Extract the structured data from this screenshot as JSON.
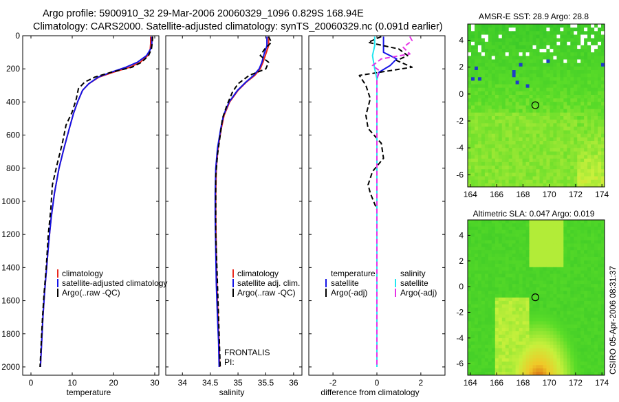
{
  "header": {
    "line1": "Argo profile:  5900910_32 29-Mar-2006 20060329_1096 0.829S 168.94E",
    "line2": "Climatology: CARS2000. Satellite-adjusted climatology: synTS_20060329.nc (0.091d earlier)"
  },
  "stamp": "CSIRO 05-Apr-2006 08:31:37",
  "colors": {
    "climatology": "#e8281e",
    "satellite": "#1414e6",
    "argo": "#000000",
    "sal_satellite": "#22e6f0",
    "sal_argo": "#e632e6"
  },
  "chart_data": [
    {
      "type": "line",
      "id": "temperature",
      "xlabel": "temperature",
      "xlim": [
        -2,
        31
      ],
      "ylim": [
        2050,
        0
      ],
      "xticks": [
        0,
        10,
        20,
        30
      ],
      "yticks": [
        0,
        200,
        400,
        600,
        800,
        1000,
        1200,
        1400,
        1600,
        1800,
        2000
      ],
      "legend": [
        "climatology",
        "satellite-adjusted climatology",
        "Argo(..raw -QC)"
      ],
      "series": [
        {
          "name": "climatology",
          "color": "#e8281e",
          "dash": false,
          "points": [
            [
              29.0,
              5
            ],
            [
              29.0,
              50
            ],
            [
              28.9,
              80
            ],
            [
              28.3,
              120
            ],
            [
              26.5,
              160
            ],
            [
              24.0,
              190
            ],
            [
              20.0,
              220
            ],
            [
              16.5,
              250
            ],
            [
              14.0,
              290
            ],
            [
              12.5,
              330
            ],
            [
              11.3,
              400
            ],
            [
              10.3,
              470
            ],
            [
              9.3,
              560
            ],
            [
              8.0,
              680
            ],
            [
              6.8,
              800
            ],
            [
              5.7,
              950
            ],
            [
              4.9,
              1100
            ],
            [
              4.3,
              1250
            ],
            [
              3.8,
              1400
            ],
            [
              3.3,
              1550
            ],
            [
              2.9,
              1700
            ],
            [
              2.6,
              1850
            ],
            [
              2.3,
              2000
            ]
          ]
        },
        {
          "name": "satellite-adjusted climatology",
          "color": "#1414e6",
          "dash": false,
          "points": [
            [
              29.3,
              5
            ],
            [
              29.3,
              50
            ],
            [
              29.0,
              80
            ],
            [
              28.0,
              120
            ],
            [
              25.8,
              160
            ],
            [
              23.0,
              190
            ],
            [
              19.5,
              220
            ],
            [
              16.3,
              250
            ],
            [
              14.0,
              290
            ],
            [
              12.5,
              330
            ],
            [
              11.3,
              400
            ],
            [
              10.3,
              470
            ],
            [
              9.3,
              560
            ],
            [
              8.0,
              680
            ],
            [
              6.8,
              800
            ],
            [
              5.7,
              950
            ],
            [
              4.9,
              1100
            ],
            [
              4.3,
              1250
            ],
            [
              3.8,
              1400
            ],
            [
              3.3,
              1550
            ],
            [
              2.9,
              1700
            ],
            [
              2.6,
              1850
            ],
            [
              2.3,
              2000
            ]
          ]
        },
        {
          "name": "Argo(..raw -QC)",
          "color": "#000000",
          "dash": true,
          "points": [
            [
              29.5,
              5
            ],
            [
              29.4,
              40
            ],
            [
              29.2,
              80
            ],
            [
              28.5,
              120
            ],
            [
              26.8,
              160
            ],
            [
              24.5,
              190
            ],
            [
              19.5,
              220
            ],
            [
              15.5,
              250
            ],
            [
              13.0,
              280
            ],
            [
              11.5,
              320
            ],
            [
              11.0,
              380
            ],
            [
              10.0,
              460
            ],
            [
              8.5,
              540
            ],
            [
              7.6,
              650
            ],
            [
              6.3,
              780
            ],
            [
              5.2,
              900
            ],
            [
              4.8,
              1050
            ],
            [
              4.2,
              1200
            ],
            [
              3.7,
              1400
            ],
            [
              3.2,
              1550
            ],
            [
              2.8,
              1700
            ],
            [
              2.5,
              1850
            ],
            [
              2.2,
              2000
            ]
          ]
        }
      ]
    },
    {
      "type": "line",
      "id": "salinity",
      "xlabel": "salinity",
      "xlim": [
        33.7,
        36.15
      ],
      "ylim": [
        2050,
        0
      ],
      "xticks": [
        34,
        34.5,
        35,
        35.5,
        36
      ],
      "legend": [
        "climatology",
        "satellite adj. clim.",
        "Argo(..raw -QC)"
      ],
      "annotation": [
        "FRONTALIS",
        "PI:"
      ],
      "series": [
        {
          "name": "climatology",
          "color": "#e8281e",
          "dash": false,
          "points": [
            [
              35.55,
              5
            ],
            [
              35.55,
              60
            ],
            [
              35.5,
              110
            ],
            [
              35.45,
              160
            ],
            [
              35.4,
              200
            ],
            [
              35.3,
              240
            ],
            [
              35.15,
              280
            ],
            [
              35.0,
              330
            ],
            [
              34.85,
              400
            ],
            [
              34.75,
              480
            ],
            [
              34.7,
              560
            ],
            [
              34.64,
              680
            ],
            [
              34.61,
              800
            ],
            [
              34.6,
              950
            ],
            [
              34.6,
              1100
            ],
            [
              34.61,
              1300
            ],
            [
              34.62,
              1500
            ],
            [
              34.64,
              1700
            ],
            [
              34.66,
              1850
            ],
            [
              34.67,
              2000
            ]
          ]
        },
        {
          "name": "satellite adj. clim.",
          "color": "#1414e6",
          "dash": false,
          "points": [
            [
              35.52,
              5
            ],
            [
              35.52,
              60
            ],
            [
              35.47,
              110
            ],
            [
              35.43,
              160
            ],
            [
              35.38,
              200
            ],
            [
              35.28,
              240
            ],
            [
              35.14,
              280
            ],
            [
              34.99,
              330
            ],
            [
              34.84,
              400
            ],
            [
              34.74,
              480
            ],
            [
              34.69,
              560
            ],
            [
              34.63,
              680
            ],
            [
              34.6,
              800
            ],
            [
              34.59,
              950
            ],
            [
              34.59,
              1100
            ],
            [
              34.6,
              1300
            ],
            [
              34.61,
              1500
            ],
            [
              34.63,
              1700
            ],
            [
              34.65,
              1850
            ],
            [
              34.66,
              2000
            ]
          ]
        },
        {
          "name": "Argo(..raw -QC)",
          "color": "#000000",
          "dash": true,
          "points": [
            [
              35.55,
              5
            ],
            [
              35.6,
              40
            ],
            [
              35.48,
              80
            ],
            [
              35.4,
              120
            ],
            [
              35.55,
              160
            ],
            [
              35.5,
              200
            ],
            [
              35.2,
              240
            ],
            [
              35.0,
              290
            ],
            [
              34.9,
              340
            ],
            [
              34.8,
              420
            ],
            [
              34.72,
              500
            ],
            [
              34.68,
              600
            ],
            [
              34.63,
              720
            ],
            [
              34.6,
              850
            ],
            [
              34.6,
              1000
            ],
            [
              34.6,
              1200
            ],
            [
              34.62,
              1400
            ],
            [
              34.64,
              1600
            ],
            [
              34.66,
              1800
            ],
            [
              34.68,
              2000
            ]
          ]
        }
      ]
    },
    {
      "type": "line",
      "id": "difference",
      "xlabel": "difference from climatology",
      "xlim": [
        -3.1,
        3.1
      ],
      "ylim": [
        2050,
        0
      ],
      "xticks": [
        -2,
        0,
        2
      ],
      "legend_headers": [
        "temperature",
        "salinity"
      ],
      "legend": [
        "satellite",
        "Argo(-adj)",
        "satellite",
        "Argo(-adj)"
      ],
      "series": [
        {
          "name": "satellite",
          "group": "temperature",
          "color": "#1414e6",
          "dash": false,
          "points": [
            [
              0.3,
              5
            ],
            [
              0.3,
              60
            ],
            [
              0.3,
              100
            ],
            [
              0.9,
              140
            ],
            [
              0.6,
              180
            ],
            [
              0.1,
              220
            ],
            [
              0.0,
              260
            ],
            [
              0.0,
              400
            ],
            [
              0.0,
              800
            ],
            [
              0.0,
              1200
            ],
            [
              0.0,
              2000
            ]
          ]
        },
        {
          "name": "Argo(-adj)",
          "group": "temperature",
          "color": "#000000",
          "dash": true,
          "points": [
            [
              0.2,
              5
            ],
            [
              -0.4,
              40
            ],
            [
              1.0,
              80
            ],
            [
              1.4,
              120
            ],
            [
              0.9,
              150
            ],
            [
              1.6,
              190
            ],
            [
              -0.8,
              240
            ],
            [
              -0.5,
              300
            ],
            [
              -0.3,
              380
            ],
            [
              -0.5,
              480
            ],
            [
              -0.4,
              560
            ],
            [
              0.2,
              650
            ],
            [
              0.3,
              740
            ],
            [
              -0.2,
              820
            ],
            [
              -0.4,
              900
            ],
            [
              -0.3,
              950
            ],
            [
              0.0,
              1050
            ],
            [
              0.0,
              1500
            ],
            [
              0.0,
              2000
            ]
          ]
        },
        {
          "name": "satellite",
          "group": "salinity",
          "color": "#22e6f0",
          "dash": false,
          "points": [
            [
              -0.1,
              5
            ],
            [
              -0.1,
              60
            ],
            [
              -0.2,
              120
            ],
            [
              -0.1,
              200
            ],
            [
              0.0,
              260
            ],
            [
              0.0,
              400
            ],
            [
              0.0,
              800
            ],
            [
              0.0,
              2000
            ]
          ]
        },
        {
          "name": "Argo(-adj)",
          "group": "salinity",
          "color": "#e632e6",
          "dash": true,
          "points": [
            [
              1.5,
              5
            ],
            [
              1.6,
              30
            ],
            [
              1.2,
              70
            ],
            [
              1.5,
              110
            ],
            [
              0.2,
              140
            ],
            [
              -0.2,
              180
            ],
            [
              0.1,
              210
            ],
            [
              0.0,
              260
            ],
            [
              0.0,
              400
            ],
            [
              0.0,
              800
            ],
            [
              0.0,
              1200
            ],
            [
              0.0,
              2000
            ]
          ]
        }
      ]
    },
    {
      "type": "heatmap",
      "id": "sst",
      "title": "AMSR-E SST: 28.9 Argo: 28.8",
      "xlim": [
        163.8,
        174.2
      ],
      "ylim": [
        -6.9,
        5.2
      ],
      "xticks": [
        164,
        166,
        168,
        170,
        172,
        174
      ],
      "yticks": [
        4,
        2,
        0,
        -2,
        -4,
        -6
      ],
      "marker": [
        168.94,
        -0.829
      ]
    },
    {
      "type": "heatmap",
      "id": "sla",
      "title": "Altimetric SLA: 0.047 Argo: 0.019",
      "xlim": [
        163.8,
        174.2
      ],
      "ylim": [
        -6.9,
        5.2
      ],
      "xticks": [
        164,
        166,
        168,
        170,
        172,
        174
      ],
      "yticks": [
        4,
        2,
        0,
        -2,
        -4,
        -6
      ],
      "marker": [
        168.94,
        -0.829
      ]
    }
  ]
}
